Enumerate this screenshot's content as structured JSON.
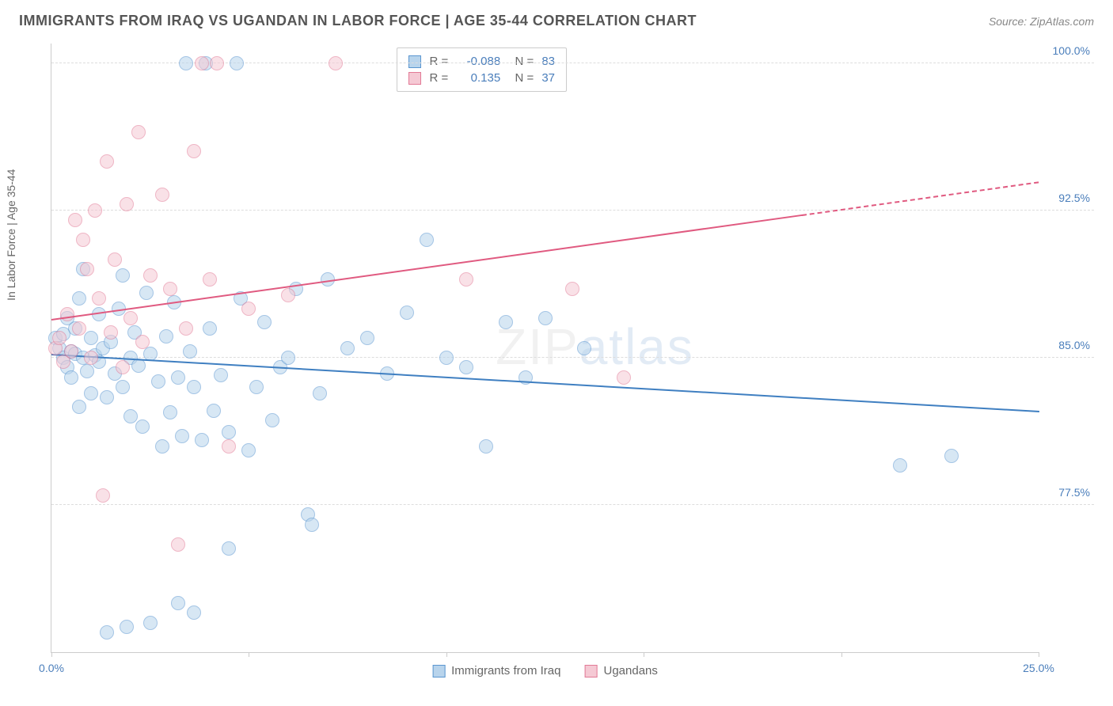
{
  "header": {
    "title": "IMMIGRANTS FROM IRAQ VS UGANDAN IN LABOR FORCE | AGE 35-44 CORRELATION CHART",
    "source_prefix": "Source: ",
    "source_name": "ZipAtlas.com"
  },
  "chart": {
    "type": "scatter",
    "y_axis_label": "In Labor Force | Age 35-44",
    "watermark_zip": "ZIP",
    "watermark_atlas": "atlas",
    "xlim": [
      0,
      25
    ],
    "ylim": [
      70,
      101
    ],
    "x_ticks": [
      0,
      5,
      10,
      15,
      20,
      25
    ],
    "x_tick_labels": {
      "0": "0.0%",
      "25": "25.0%"
    },
    "y_grid": [
      77.5,
      85.0,
      92.5,
      100.0
    ],
    "y_tick_labels": [
      "77.5%",
      "85.0%",
      "92.5%",
      "100.0%"
    ],
    "background_color": "#ffffff",
    "grid_color": "#dddddd",
    "axis_color": "#cccccc",
    "tick_label_color": "#4a7ebb",
    "point_radius": 9,
    "point_opacity": 0.55,
    "series": [
      {
        "name": "Immigrants from Iraq",
        "fill": "#b8d4ec",
        "stroke": "#5a96d0",
        "line_color": "#3f7fc1",
        "r_value": "-0.088",
        "n_value": "83",
        "trend": {
          "x1": 0,
          "y1": 85.2,
          "x2": 25,
          "y2": 82.3,
          "solid_until_x": 25
        },
        "points": [
          [
            0.1,
            86
          ],
          [
            0.2,
            85.5
          ],
          [
            0.3,
            85
          ],
          [
            0.3,
            86.2
          ],
          [
            0.4,
            84.5
          ],
          [
            0.4,
            87
          ],
          [
            0.5,
            85.3
          ],
          [
            0.5,
            84
          ],
          [
            0.6,
            86.5
          ],
          [
            0.6,
            85.2
          ],
          [
            0.7,
            88
          ],
          [
            0.7,
            82.5
          ],
          [
            0.8,
            85
          ],
          [
            0.8,
            89.5
          ],
          [
            0.9,
            84.3
          ],
          [
            1.0,
            86
          ],
          [
            1.0,
            83.2
          ],
          [
            1.1,
            85.1
          ],
          [
            1.2,
            84.8
          ],
          [
            1.2,
            87.2
          ],
          [
            1.3,
            85.5
          ],
          [
            1.4,
            71
          ],
          [
            1.4,
            83
          ],
          [
            1.5,
            85.8
          ],
          [
            1.6,
            84.2
          ],
          [
            1.7,
            87.5
          ],
          [
            1.8,
            83.5
          ],
          [
            1.8,
            89.2
          ],
          [
            1.9,
            71.3
          ],
          [
            2.0,
            85
          ],
          [
            2.0,
            82
          ],
          [
            2.1,
            86.3
          ],
          [
            2.2,
            84.6
          ],
          [
            2.3,
            81.5
          ],
          [
            2.4,
            88.3
          ],
          [
            2.5,
            71.5
          ],
          [
            2.5,
            85.2
          ],
          [
            2.7,
            83.8
          ],
          [
            2.8,
            80.5
          ],
          [
            2.9,
            86.1
          ],
          [
            3.0,
            82.2
          ],
          [
            3.1,
            87.8
          ],
          [
            3.2,
            84
          ],
          [
            3.2,
            72.5
          ],
          [
            3.3,
            81
          ],
          [
            3.4,
            100
          ],
          [
            3.5,
            85.3
          ],
          [
            3.6,
            83.5
          ],
          [
            3.6,
            72
          ],
          [
            3.8,
            80.8
          ],
          [
            3.9,
            100
          ],
          [
            4.0,
            86.5
          ],
          [
            4.1,
            82.3
          ],
          [
            4.3,
            84.1
          ],
          [
            4.5,
            75.3
          ],
          [
            4.5,
            81.2
          ],
          [
            4.7,
            100
          ],
          [
            4.8,
            88
          ],
          [
            5.0,
            80.3
          ],
          [
            5.2,
            83.5
          ],
          [
            5.4,
            86.8
          ],
          [
            5.6,
            81.8
          ],
          [
            5.8,
            84.5
          ],
          [
            6.0,
            85
          ],
          [
            6.2,
            88.5
          ],
          [
            6.5,
            77
          ],
          [
            6.6,
            76.5
          ],
          [
            6.8,
            83.2
          ],
          [
            7.0,
            89
          ],
          [
            7.5,
            85.5
          ],
          [
            8.0,
            86
          ],
          [
            8.5,
            84.2
          ],
          [
            9.0,
            87.3
          ],
          [
            9.5,
            91
          ],
          [
            10.0,
            85
          ],
          [
            10.5,
            84.5
          ],
          [
            11.0,
            80.5
          ],
          [
            11.5,
            86.8
          ],
          [
            12.0,
            84
          ],
          [
            12.5,
            87
          ],
          [
            13.5,
            85.5
          ],
          [
            21.5,
            79.5
          ],
          [
            22.8,
            80
          ]
        ]
      },
      {
        "name": "Ugandans",
        "fill": "#f5c9d4",
        "stroke": "#e27a96",
        "line_color": "#e05a80",
        "r_value": "0.135",
        "n_value": "37",
        "trend": {
          "x1": 0,
          "y1": 87.0,
          "x2": 25,
          "y2": 94.0,
          "solid_until_x": 19
        },
        "points": [
          [
            0.1,
            85.5
          ],
          [
            0.2,
            86
          ],
          [
            0.3,
            84.8
          ],
          [
            0.4,
            87.2
          ],
          [
            0.5,
            85.3
          ],
          [
            0.6,
            92
          ],
          [
            0.7,
            86.5
          ],
          [
            0.8,
            91
          ],
          [
            0.9,
            89.5
          ],
          [
            1.0,
            85
          ],
          [
            1.1,
            92.5
          ],
          [
            1.2,
            88
          ],
          [
            1.3,
            78
          ],
          [
            1.4,
            95
          ],
          [
            1.5,
            86.3
          ],
          [
            1.6,
            90
          ],
          [
            1.8,
            84.5
          ],
          [
            1.9,
            92.8
          ],
          [
            2.0,
            87
          ],
          [
            2.2,
            96.5
          ],
          [
            2.3,
            85.8
          ],
          [
            2.5,
            89.2
          ],
          [
            2.8,
            93.3
          ],
          [
            3.0,
            88.5
          ],
          [
            3.2,
            75.5
          ],
          [
            3.4,
            86.5
          ],
          [
            3.6,
            95.5
          ],
          [
            3.8,
            100
          ],
          [
            4.0,
            89
          ],
          [
            4.2,
            100
          ],
          [
            4.5,
            80.5
          ],
          [
            5.0,
            87.5
          ],
          [
            6.0,
            88.2
          ],
          [
            7.2,
            100
          ],
          [
            10.5,
            89
          ],
          [
            13.2,
            88.5
          ],
          [
            14.5,
            84
          ]
        ]
      }
    ],
    "bottom_legend": [
      {
        "label": "Immigrants from Iraq",
        "fill": "#b8d4ec",
        "stroke": "#5a96d0"
      },
      {
        "label": "Ugandans",
        "fill": "#f5c9d4",
        "stroke": "#e27a96"
      }
    ]
  }
}
